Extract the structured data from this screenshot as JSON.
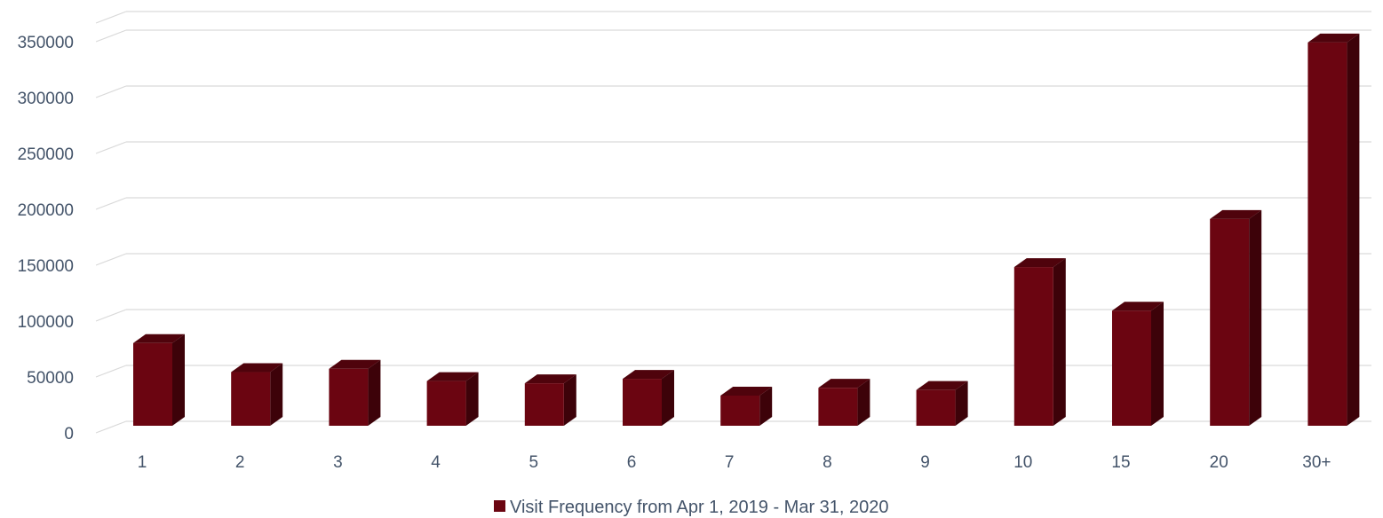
{
  "chart_data": {
    "type": "bar",
    "categories": [
      "1",
      "2",
      "3",
      "4",
      "5",
      "6",
      "7",
      "8",
      "9",
      "10",
      "15",
      "20",
      "30+"
    ],
    "series": [
      {
        "name": "Visit Frequency from Apr 1, 2019 - Mar 31, 2020",
        "values": [
          74000,
          48000,
          51000,
          40000,
          38000,
          42000,
          27000,
          34000,
          32000,
          142000,
          103000,
          185000,
          343000
        ],
        "color": "#6b0511"
      }
    ],
    "yticks": [
      "0",
      "50000",
      "100000",
      "150000",
      "200000",
      "250000",
      "300000",
      "350000"
    ],
    "ylim": [
      0,
      350000
    ],
    "grid": true,
    "legend_position": "bottom",
    "style": "3d-column"
  }
}
